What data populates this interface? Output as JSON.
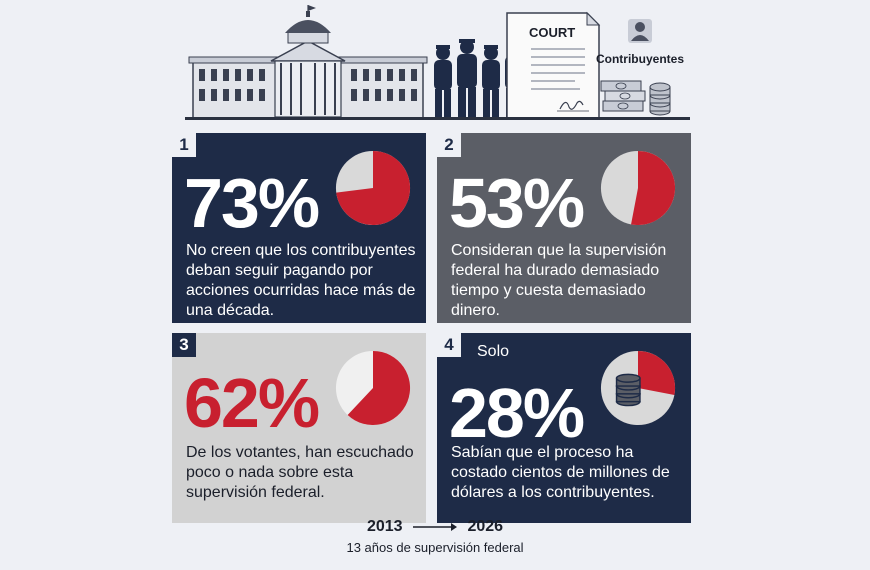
{
  "banner": {
    "court_label": "COURT",
    "taxpayers_label": "Contribuyentes"
  },
  "colors": {
    "navy": "#1e2b47",
    "gray": "#5b5e66",
    "light_gray": "#d2d2d2",
    "red": "#c8202f"
  },
  "cards": [
    {
      "number": "1",
      "prefix": "",
      "percent_text": "73%",
      "percent_value": 73,
      "description": "No creen que los contribuyentes deban seguir pagando por acciones ocurridas hace más de una década."
    },
    {
      "number": "2",
      "prefix": "",
      "percent_text": "53%",
      "percent_value": 53,
      "description": "Consideran que la supervisión federal ha durado demasiado tiempo y cuesta demasiado dinero."
    },
    {
      "number": "3",
      "prefix": "",
      "percent_text": "62%",
      "percent_value": 62,
      "description": "De los votantes, han escuchado poco o nada sobre esta supervisión federal."
    },
    {
      "number": "4",
      "prefix": "Solo",
      "percent_text": "28%",
      "percent_value": 28,
      "description": "Sabían que el proceso ha costado cientos de millones de dólares a los contribuyentes."
    }
  ],
  "footer": {
    "start_year": "2013",
    "end_year": "2026",
    "subtitle": "13 años de supervisión federal"
  }
}
